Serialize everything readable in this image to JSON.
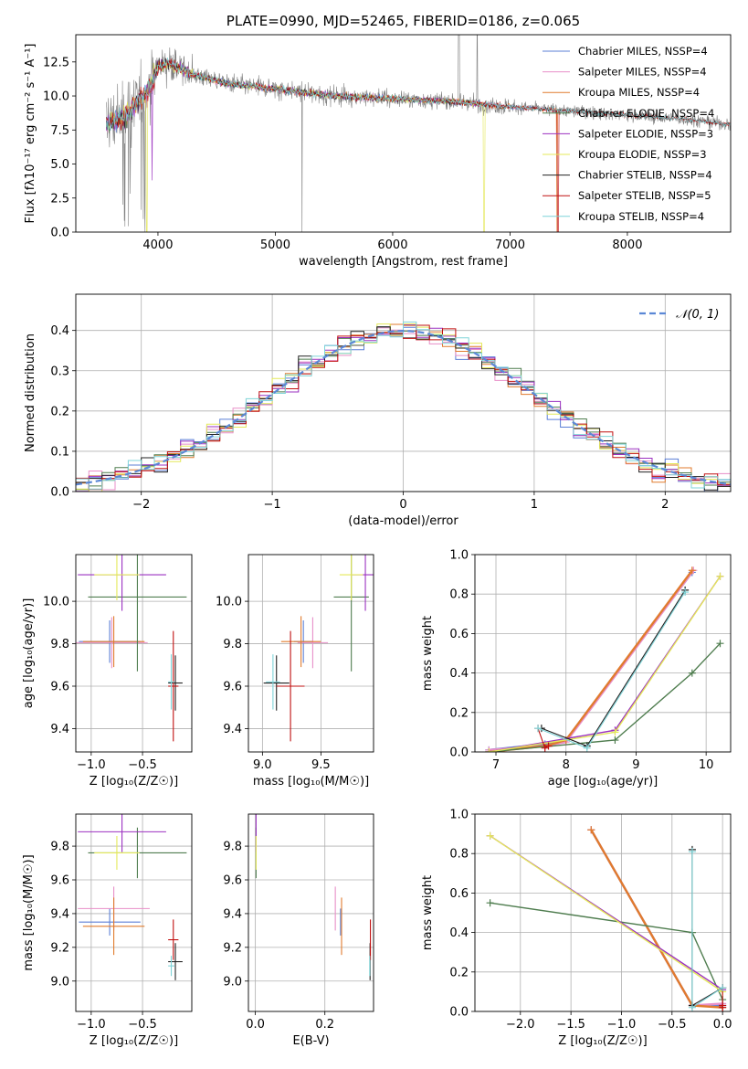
{
  "colors": {
    "chabrier_miles": "#5b7fd6",
    "salpeter_miles": "#e88fc8",
    "kroupa_miles": "#e07b2e",
    "chabrier_elodie": "#4f7d4f",
    "salpeter_elodie": "#9b30c0",
    "kroupa_elodie": "#e4e85a",
    "chabrier_stelib": "#222222",
    "salpeter_stelib": "#c01010",
    "kroupa_stelib": "#7fd4d8",
    "data_gray": "#808080",
    "grid": "#b0b0b0"
  },
  "chart_data": [
    {
      "id": "spectrum",
      "type": "line",
      "title": "PLATE=0990, MJD=52465, FIBERID=0186, z=0.065",
      "xlabel": "wavelength [Angstrom, rest frame]",
      "ylabel": "Flux [fλ10⁻¹⁷ erg cm⁻² s⁻¹ A⁻¹]",
      "xlim": [
        3300,
        8880
      ],
      "ylim": [
        0,
        14.5
      ],
      "xticks": [
        4000,
        5000,
        6000,
        7000,
        8000
      ],
      "yticks": [
        0.0,
        2.5,
        5.0,
        7.5,
        10.0,
        12.5
      ],
      "grid": false,
      "legend_position": "top-right",
      "legend": [
        "Chabrier MILES, N_SSP=4",
        "Salpeter MILES, N_SSP=4",
        "Kroupa MILES, N_SSP=4",
        "Chabrier ELODIE, N_SSP=4",
        "Salpeter ELODIE, N_SSP=3",
        "Kroupa ELODIE, N_SSP=3",
        "Chabrier STELIB, N_SSP=4",
        "Salpeter STELIB, N_SSP=5",
        "Kroupa STELIB, N_SSP=4"
      ],
      "continuum": {
        "x": [
          3560,
          3700,
          3800,
          3900,
          4000,
          4100,
          4300,
          4600,
          5000,
          5500,
          6000,
          6500,
          7000,
          7500,
          8000,
          8500,
          8880
        ],
        "y": [
          8.0,
          8.4,
          9.3,
          10.2,
          12.2,
          12.4,
          11.6,
          10.9,
          10.5,
          10.0,
          9.8,
          9.6,
          9.2,
          8.9,
          8.6,
          8.3,
          7.9
        ]
      }
    },
    {
      "id": "residuals",
      "type": "histogram",
      "xlabel": "(data-model)/error",
      "ylabel": "Normed distribution",
      "xlim": [
        -2.5,
        2.5
      ],
      "ylim": [
        0,
        0.49
      ],
      "xticks": [
        -2,
        -1,
        0,
        1,
        2
      ],
      "yticks": [
        0.0,
        0.1,
        0.2,
        0.3,
        0.4
      ],
      "grid": true,
      "legend_position": "top-right",
      "legend": [
        "𝒩(0, 1)"
      ],
      "bin_width": 0.1
    },
    {
      "id": "age_vs_Z",
      "type": "errorbar",
      "xlabel": "Z [log₁₀(Z/Z☉)]",
      "ylabel": "age  [log₁₀(age/yr)]",
      "xlim": [
        -1.15,
        -0.02
      ],
      "ylim": [
        9.29,
        10.22
      ],
      "xticks": [
        -1.0,
        -0.5
      ],
      "yticks": [
        9.4,
        9.6,
        9.8,
        10.0
      ],
      "grid": true,
      "points": [
        {
          "s": "chabrier_miles",
          "x": -0.82,
          "y": 9.81,
          "xerr": 0.3,
          "yerr": 0.1
        },
        {
          "s": "salpeter_miles",
          "x": -0.8,
          "y": 9.805,
          "xerr": 0.35,
          "yerr": 0.12
        },
        {
          "s": "kroupa_miles",
          "x": -0.78,
          "y": 9.81,
          "xerr": 0.3,
          "yerr": 0.12
        },
        {
          "s": "chabrier_elodie",
          "x": -0.55,
          "y": 10.02,
          "xerr": 0.48,
          "yerr": 0.35
        },
        {
          "s": "salpeter_elodie",
          "x": -0.7,
          "y": 10.125,
          "xerr": 0.43,
          "yerr": 0.17
        },
        {
          "s": "kroupa_elodie",
          "x": -0.75,
          "y": 10.125,
          "xerr": 0.22,
          "yerr": 0.12
        },
        {
          "s": "chabrier_stelib",
          "x": -0.18,
          "y": 9.615,
          "xerr": 0.07,
          "yerr": 0.13
        },
        {
          "s": "salpeter_stelib",
          "x": -0.2,
          "y": 9.6,
          "xerr": 0.05,
          "yerr": 0.26
        },
        {
          "s": "kroupa_stelib",
          "x": -0.22,
          "y": 9.62,
          "xerr": 0.03,
          "yerr": 0.13
        }
      ]
    },
    {
      "id": "age_vs_mass",
      "type": "errorbar",
      "xlabel": "mass [log₁₀(M/M☉)]",
      "ylabel": "",
      "xlim": [
        8.88,
        9.95
      ],
      "ylim": [
        9.29,
        10.22
      ],
      "xticks": [
        9.0,
        9.5
      ],
      "yticks": [
        9.4,
        9.6,
        9.8,
        10.0
      ],
      "grid": true,
      "points": [
        {
          "s": "chabrier_miles",
          "x": 9.35,
          "y": 9.81,
          "xerr": 0.08,
          "yerr": 0.1
        },
        {
          "s": "salpeter_miles",
          "x": 9.43,
          "y": 9.805,
          "xerr": 0.13,
          "yerr": 0.12
        },
        {
          "s": "kroupa_miles",
          "x": 9.33,
          "y": 9.81,
          "xerr": 0.17,
          "yerr": 0.12
        },
        {
          "s": "chabrier_elodie",
          "x": 9.76,
          "y": 10.02,
          "xerr": 0.15,
          "yerr": 0.35
        },
        {
          "s": "salpeter_elodie",
          "x": 9.88,
          "y": 10.125,
          "xerr": 0.12,
          "yerr": 0.17
        },
        {
          "s": "kroupa_elodie",
          "x": 9.76,
          "y": 10.125,
          "xerr": 0.1,
          "yerr": 0.12
        },
        {
          "s": "chabrier_stelib",
          "x": 9.12,
          "y": 9.615,
          "xerr": 0.11,
          "yerr": 0.13
        },
        {
          "s": "salpeter_stelib",
          "x": 9.24,
          "y": 9.6,
          "xerr": 0.12,
          "yerr": 0.26
        },
        {
          "s": "kroupa_stelib",
          "x": 9.09,
          "y": 9.62,
          "xerr": 0.06,
          "yerr": 0.13
        }
      ]
    },
    {
      "id": "weight_vs_age",
      "type": "line",
      "xlabel": "age  [log₁₀(age/yr)]",
      "ylabel": "mass weight",
      "xlim": [
        6.7,
        10.35
      ],
      "ylim": [
        0,
        1
      ],
      "xticks": [
        7,
        8,
        9,
        10
      ],
      "yticks": [
        0.0,
        0.2,
        0.4,
        0.6,
        0.8,
        1.0
      ],
      "grid": true,
      "series": [
        {
          "s": "chabrier_miles",
          "x": [
            6.9,
            7.7,
            8.0,
            9.8
          ],
          "y": [
            0.01,
            0.04,
            0.06,
            0.91
          ]
        },
        {
          "s": "salpeter_miles",
          "x": [
            6.9,
            7.7,
            8.0,
            9.82
          ],
          "y": [
            0.01,
            0.03,
            0.05,
            0.92
          ]
        },
        {
          "s": "kroupa_miles",
          "x": [
            6.9,
            7.7,
            8.0,
            9.8
          ],
          "y": [
            0.0,
            0.03,
            0.06,
            0.92
          ]
        },
        {
          "s": "chabrier_elodie",
          "x": [
            6.9,
            8.7,
            9.8,
            10.2
          ],
          "y": [
            0.0,
            0.06,
            0.4,
            0.55
          ]
        },
        {
          "s": "salpeter_elodie",
          "x": [
            6.9,
            8.7,
            10.2
          ],
          "y": [
            0.0,
            0.11,
            0.89
          ]
        },
        {
          "s": "kroupa_elodie",
          "x": [
            6.9,
            8.7,
            10.2
          ],
          "y": [
            0.0,
            0.1,
            0.89
          ]
        },
        {
          "s": "chabrier_stelib",
          "x": [
            7.65,
            8.3,
            9.7
          ],
          "y": [
            0.12,
            0.03,
            0.82
          ]
        },
        {
          "s": "salpeter_stelib",
          "x": [
            7.6,
            7.7,
            7.75
          ],
          "y": [
            0.12,
            0.02,
            0.03
          ]
        },
        {
          "s": "kroupa_stelib",
          "x": [
            7.6,
            8.3,
            9.7
          ],
          "y": [
            0.12,
            0.02,
            0.81
          ]
        }
      ]
    },
    {
      "id": "mass_vs_Z",
      "type": "errorbar",
      "xlabel": "Z [log₁₀(Z/Z☉)]",
      "ylabel": "mass [log₁₀(M/M☉)]",
      "xlim": [
        -1.15,
        -0.02
      ],
      "ylim": [
        8.82,
        9.99
      ],
      "xticks": [
        -1.0,
        -0.5
      ],
      "yticks": [
        9.0,
        9.2,
        9.4,
        9.6,
        9.8
      ],
      "grid": true,
      "points": [
        {
          "s": "chabrier_miles",
          "x": -0.82,
          "y": 9.35,
          "xerr": 0.3,
          "yerr": 0.08
        },
        {
          "s": "salpeter_miles",
          "x": -0.78,
          "y": 9.43,
          "xerr": 0.35,
          "yerr": 0.13
        },
        {
          "s": "kroupa_miles",
          "x": -0.78,
          "y": 9.325,
          "xerr": 0.3,
          "yerr": 0.17
        },
        {
          "s": "chabrier_elodie",
          "x": -0.55,
          "y": 9.76,
          "xerr": 0.48,
          "yerr": 0.15
        },
        {
          "s": "salpeter_elodie",
          "x": -0.7,
          "y": 9.885,
          "xerr": 0.43,
          "yerr": 0.12
        },
        {
          "s": "kroupa_elodie",
          "x": -0.75,
          "y": 9.76,
          "xerr": 0.22,
          "yerr": 0.1
        },
        {
          "s": "chabrier_stelib",
          "x": -0.18,
          "y": 9.115,
          "xerr": 0.07,
          "yerr": 0.11
        },
        {
          "s": "salpeter_stelib",
          "x": -0.2,
          "y": 9.245,
          "xerr": 0.05,
          "yerr": 0.12
        },
        {
          "s": "kroupa_stelib",
          "x": -0.22,
          "y": 9.09,
          "xerr": 0.03,
          "yerr": 0.06
        }
      ]
    },
    {
      "id": "mass_vs_ebv",
      "type": "errorbar",
      "xlabel": "E(B-V)",
      "ylabel": "",
      "xlim": [
        -0.02,
        0.34
      ],
      "ylim": [
        8.82,
        9.99
      ],
      "xticks": [
        0.0,
        0.2
      ],
      "yticks": [
        9.0,
        9.2,
        9.4,
        9.6,
        9.8
      ],
      "grid": true,
      "points": [
        {
          "s": "chabrier_miles",
          "x": 0.245,
          "y": 9.35,
          "xerr": 0,
          "yerr": 0.08
        },
        {
          "s": "salpeter_miles",
          "x": 0.23,
          "y": 9.43,
          "xerr": 0,
          "yerr": 0.13
        },
        {
          "s": "kroupa_miles",
          "x": 0.248,
          "y": 9.325,
          "xerr": 0,
          "yerr": 0.17
        },
        {
          "s": "chabrier_elodie",
          "x": 0.002,
          "y": 9.76,
          "xerr": 0,
          "yerr": 0.15
        },
        {
          "s": "salpeter_elodie",
          "x": 0.002,
          "y": 9.885,
          "xerr": 0,
          "yerr": 0.12
        },
        {
          "s": "kroupa_elodie",
          "x": 0.002,
          "y": 9.76,
          "xerr": 0,
          "yerr": 0.1
        },
        {
          "s": "chabrier_stelib",
          "x": 0.33,
          "y": 9.115,
          "xerr": 0,
          "yerr": 0.11
        },
        {
          "s": "salpeter_stelib",
          "x": 0.331,
          "y": 9.245,
          "xerr": 0,
          "yerr": 0.12
        },
        {
          "s": "kroupa_stelib",
          "x": 0.329,
          "y": 9.09,
          "xerr": 0,
          "yerr": 0.06
        }
      ]
    },
    {
      "id": "weight_vs_Z",
      "type": "line",
      "xlabel": "Z [log₁₀(Z/Z☉)]",
      "ylabel": "mass weight",
      "xlim": [
        -2.45,
        0.08
      ],
      "ylim": [
        0,
        1
      ],
      "xticks": [
        -2.0,
        -1.5,
        -1.0,
        -0.5,
        0.0
      ],
      "yticks": [
        0.0,
        0.2,
        0.4,
        0.6,
        0.8,
        1.0
      ],
      "grid": true,
      "series": [
        {
          "s": "chabrier_miles",
          "x": [
            -1.3,
            -0.3,
            0.0
          ],
          "y": [
            0.92,
            0.03,
            0.03
          ]
        },
        {
          "s": "salpeter_miles",
          "x": [
            -1.3,
            -0.3,
            0.0
          ],
          "y": [
            0.92,
            0.03,
            0.04
          ]
        },
        {
          "s": "kroupa_miles",
          "x": [
            -1.3,
            -0.3,
            0.0
          ],
          "y": [
            0.92,
            0.03,
            0.02
          ]
        },
        {
          "s": "chabrier_elodie",
          "x": [
            -2.3,
            -0.3,
            0.0
          ],
          "y": [
            0.55,
            0.4,
            0.06
          ]
        },
        {
          "s": "salpeter_elodie",
          "x": [
            -2.3,
            0.0
          ],
          "y": [
            0.89,
            0.11
          ]
        },
        {
          "s": "kroupa_elodie",
          "x": [
            -2.3,
            0.0
          ],
          "y": [
            0.89,
            0.1
          ]
        },
        {
          "s": "chabrier_stelib",
          "x": [
            -0.3,
            -0.3,
            0.0
          ],
          "y": [
            0.82,
            0.03,
            0.12
          ]
        },
        {
          "s": "salpeter_stelib",
          "x": [
            0.0,
            0.0,
            0.0
          ],
          "y": [
            0.12,
            0.02,
            0.03
          ]
        },
        {
          "s": "kroupa_stelib",
          "x": [
            -0.3,
            -0.3,
            0.0
          ],
          "y": [
            0.81,
            0.02,
            0.12
          ]
        }
      ]
    }
  ]
}
